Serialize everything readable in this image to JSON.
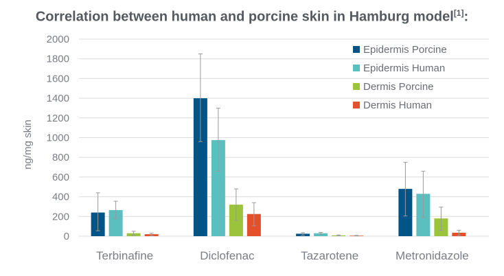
{
  "chart_data": {
    "type": "bar",
    "title": "Correlation between human and porcine skin in Hamburg model",
    "title_superscript": "[1]",
    "title_suffix": ":",
    "xlabel": "",
    "ylabel": "ng/mg skin",
    "ylim": [
      0,
      2000
    ],
    "yticks": [
      0,
      200,
      400,
      600,
      800,
      1000,
      1200,
      1400,
      1600,
      1800,
      2000
    ],
    "grid": true,
    "legend_position": "top-right",
    "categories": [
      "Terbinafine",
      "Diclofenac",
      "Tazarotene",
      "Metronidazole"
    ],
    "series": [
      {
        "name": "Epidermis Porcine",
        "color": "#005486",
        "values": [
          240,
          1400,
          25,
          480
        ],
        "err_low": [
          55,
          960,
          10,
          205
        ],
        "err_high": [
          440,
          1850,
          35,
          750
        ]
      },
      {
        "name": "Epidermis Human",
        "color": "#5bbfc0",
        "values": [
          265,
          975,
          30,
          430
        ],
        "err_low": [
          180,
          660,
          20,
          190
        ],
        "err_high": [
          355,
          1300,
          38,
          660
        ]
      },
      {
        "name": "Dermis Porcine",
        "color": "#9bc33c",
        "values": [
          30,
          320,
          8,
          180
        ],
        "err_low": [
          10,
          160,
          4,
          60
        ],
        "err_high": [
          50,
          480,
          12,
          295
        ]
      },
      {
        "name": "Dermis Human",
        "color": "#e4502a",
        "values": [
          20,
          225,
          5,
          35
        ],
        "err_low": [
          5,
          105,
          2,
          10
        ],
        "err_high": [
          30,
          340,
          8,
          60
        ]
      }
    ]
  }
}
